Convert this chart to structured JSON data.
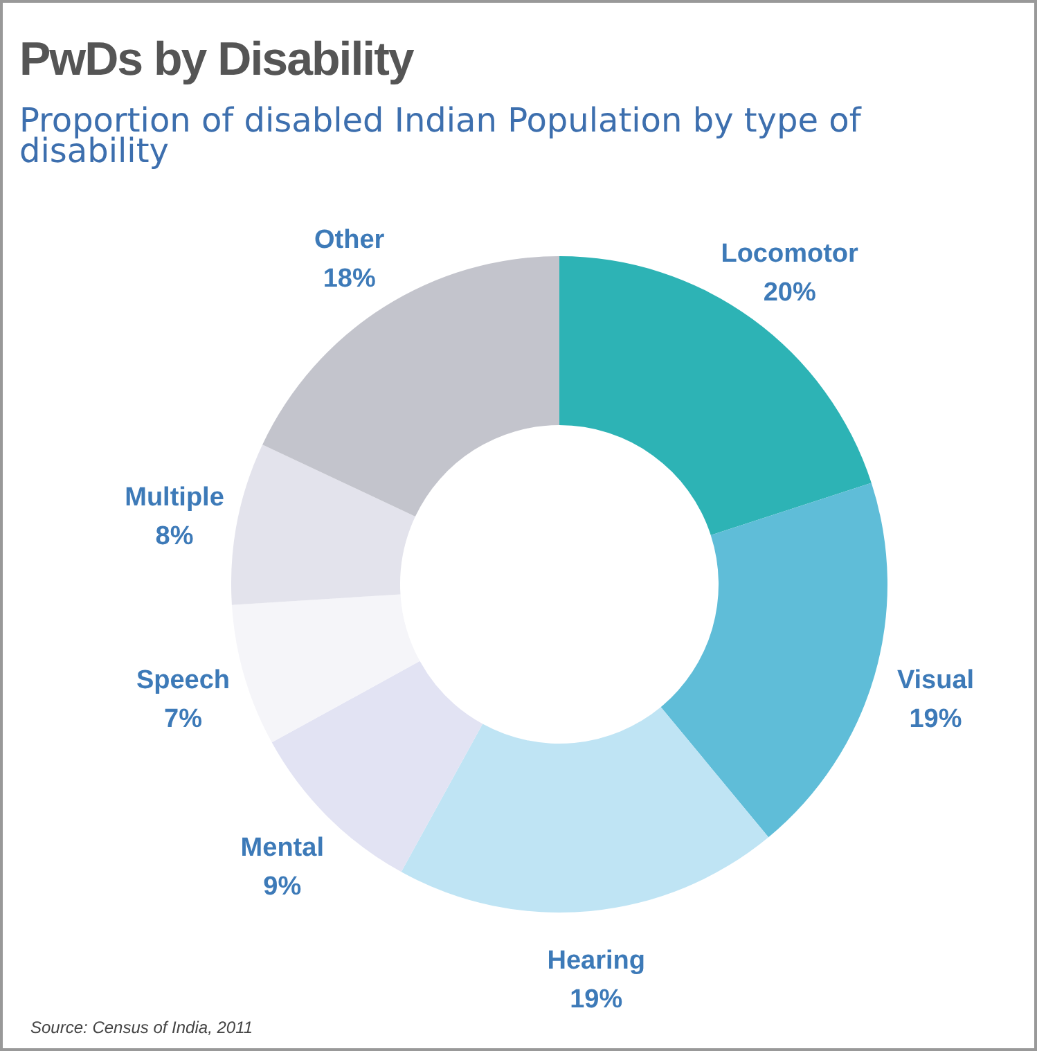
{
  "chart_data": {
    "type": "donut",
    "title": "PwDs by Disability",
    "subtitle": "Proportion of disabled Indian Population by type of disability",
    "categories": [
      "Locomotor",
      "Visual",
      "Hearing",
      "Mental",
      "Speech",
      "Multiple",
      "Other"
    ],
    "values": [
      20,
      19,
      19,
      9,
      7,
      8,
      18
    ],
    "colors": [
      "#2db3b5",
      "#5fbdd8",
      "#bfe4f4",
      "#e2e3f3",
      "#f5f5f9",
      "#e3e3ec",
      "#c3c4cc"
    ],
    "value_labels": [
      "20%",
      "19%",
      "19%",
      "9%",
      "7%",
      "8%",
      "18%"
    ],
    "annotations": [
      "Source: Census of India, 2011"
    ]
  }
}
